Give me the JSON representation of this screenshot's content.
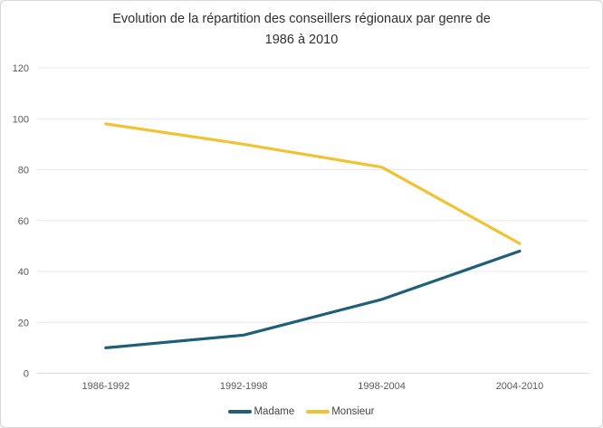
{
  "chart_data": {
    "type": "line",
    "title": "Evolution de la répartition des conseillers régionaux par genre de 1986 à 2010",
    "categories": [
      "1986-1992",
      "1992-1998",
      "1998-2004",
      "2004-2010"
    ],
    "series": [
      {
        "name": "Madame",
        "values": [
          10,
          15,
          29,
          48
        ],
        "color": "#1f5f78"
      },
      {
        "name": "Monsieur",
        "values": [
          98,
          90,
          81,
          51
        ],
        "color": "#f1c232"
      }
    ],
    "xlabel": "",
    "ylabel": "",
    "ylim": [
      0,
      120
    ],
    "yticks": [
      0,
      20,
      40,
      60,
      80,
      100,
      120
    ],
    "grid": true,
    "legend_position": "bottom",
    "colors": {
      "gridline": "#e8e8e8",
      "baseline": "#d9d9d9",
      "axis_text": "#595959"
    }
  }
}
